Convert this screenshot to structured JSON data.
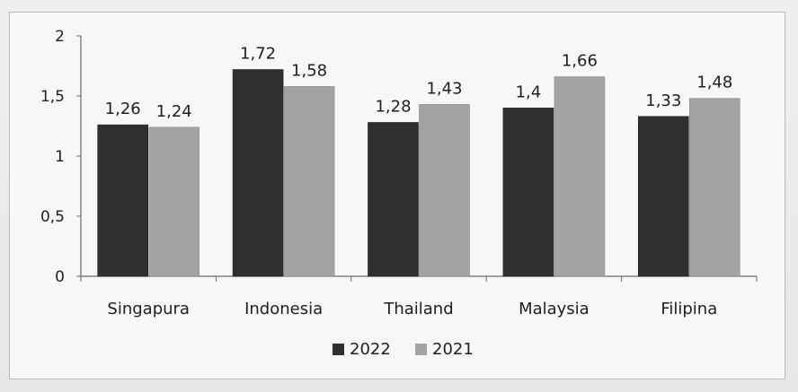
{
  "chart_data": {
    "type": "bar",
    "categories": [
      "Singapura",
      "Indonesia",
      "Thailand",
      "Malaysia",
      "Filipina"
    ],
    "series": [
      {
        "name": "2022",
        "values": [
          1.26,
          1.72,
          1.28,
          1.4,
          1.33
        ],
        "value_labels": [
          "1,26",
          "1,72",
          "1,28",
          "1,4",
          "1,33"
        ],
        "color": "#2f2f2f"
      },
      {
        "name": "2021",
        "values": [
          1.24,
          1.58,
          1.43,
          1.66,
          1.48
        ],
        "value_labels": [
          "1,24",
          "1,58",
          "1,43",
          "1,66",
          "1,48"
        ],
        "color": "#a3a3a3"
      }
    ],
    "y_ticks": [
      {
        "value": 0,
        "label": "0"
      },
      {
        "value": 0.5,
        "label": "0,5"
      },
      {
        "value": 1,
        "label": "1"
      },
      {
        "value": 1.5,
        "label": "1,5"
      },
      {
        "value": 2,
        "label": "2"
      }
    ],
    "ylim": [
      0,
      2
    ],
    "grid": false,
    "legend_position": "bottom",
    "title": "",
    "xlabel": "",
    "ylabel": ""
  }
}
